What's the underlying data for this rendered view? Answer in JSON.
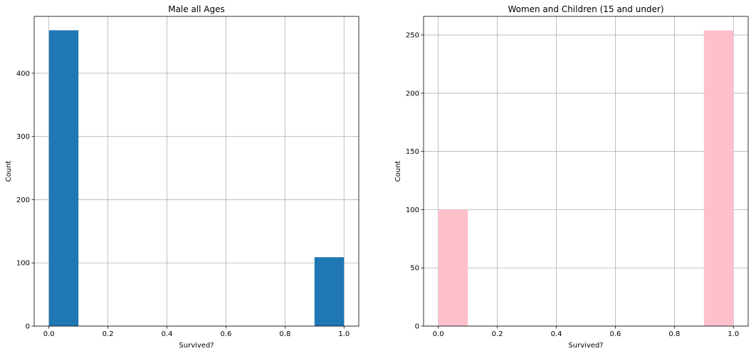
{
  "chart_data": [
    {
      "type": "bar",
      "title": "Male all Ages",
      "xlabel": "Survived?",
      "ylabel": "Count",
      "color": "#1f77b4",
      "grid": true,
      "xlim": [
        -0.05,
        1.05
      ],
      "ylim": [
        0,
        490
      ],
      "xticks": [
        0.0,
        0.2,
        0.4,
        0.6,
        0.8,
        1.0
      ],
      "xtick_labels": [
        "0.0",
        "0.2",
        "0.4",
        "0.6",
        "0.8",
        "1.0"
      ],
      "yticks": [
        0,
        100,
        200,
        300,
        400
      ],
      "ytick_labels": [
        "0",
        "100",
        "200",
        "300",
        "400"
      ],
      "bins": [
        {
          "x0": 0.0,
          "x1": 0.1,
          "value": 468
        },
        {
          "x0": 0.9,
          "x1": 1.0,
          "value": 109
        }
      ]
    },
    {
      "type": "bar",
      "title": "Women and Children (15 and under)",
      "xlabel": "Survived?",
      "ylabel": "Count",
      "color": "#ffc0cb",
      "grid": true,
      "xlim": [
        -0.05,
        1.05
      ],
      "ylim": [
        0,
        266
      ],
      "xticks": [
        0.0,
        0.2,
        0.4,
        0.6,
        0.8,
        1.0
      ],
      "xtick_labels": [
        "0.0",
        "0.2",
        "0.4",
        "0.6",
        "0.8",
        "1.0"
      ],
      "yticks": [
        0,
        50,
        100,
        150,
        200,
        250
      ],
      "ytick_labels": [
        "0",
        "50",
        "100",
        "150",
        "200",
        "250"
      ],
      "bins": [
        {
          "x0": 0.0,
          "x1": 0.1,
          "value": 100
        },
        {
          "x0": 0.9,
          "x1": 1.0,
          "value": 254
        }
      ]
    }
  ]
}
